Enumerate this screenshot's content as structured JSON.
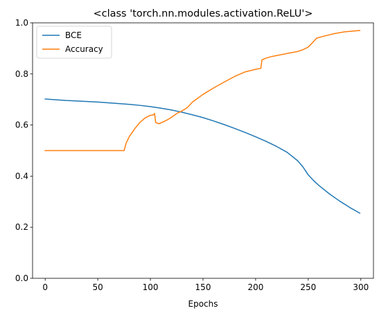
{
  "chart_data": {
    "type": "line",
    "title": "<class 'torch.nn.modules.activation.ReLU'>",
    "xlabel": "Epochs",
    "ylabel": "",
    "xlim": [
      -12,
      312
    ],
    "ylim": [
      0.0,
      1.0
    ],
    "x_ticks": [
      0,
      50,
      100,
      150,
      200,
      250,
      300
    ],
    "y_ticks": [
      0.0,
      0.2,
      0.4,
      0.6,
      0.8,
      1.0
    ],
    "x_tick_labels": [
      "0",
      "50",
      "100",
      "150",
      "200",
      "250",
      "300"
    ],
    "y_tick_labels": [
      "0.0",
      "0.2",
      "0.4",
      "0.6",
      "0.8",
      "1.0"
    ],
    "grid": false,
    "legend_position": "upper-left",
    "series": [
      {
        "name": "BCE",
        "color": "#1f77b4",
        "points": [
          [
            0,
            0.702
          ],
          [
            10,
            0.699
          ],
          [
            20,
            0.696
          ],
          [
            30,
            0.694
          ],
          [
            40,
            0.692
          ],
          [
            50,
            0.69
          ],
          [
            60,
            0.687
          ],
          [
            70,
            0.684
          ],
          [
            80,
            0.681
          ],
          [
            90,
            0.677
          ],
          [
            100,
            0.672
          ],
          [
            110,
            0.666
          ],
          [
            120,
            0.659
          ],
          [
            130,
            0.65
          ],
          [
            140,
            0.64
          ],
          [
            150,
            0.629
          ],
          [
            160,
            0.616
          ],
          [
            170,
            0.602
          ],
          [
            180,
            0.587
          ],
          [
            190,
            0.571
          ],
          [
            200,
            0.554
          ],
          [
            210,
            0.536
          ],
          [
            220,
            0.516
          ],
          [
            230,
            0.493
          ],
          [
            240,
            0.46
          ],
          [
            245,
            0.436
          ],
          [
            250,
            0.405
          ],
          [
            255,
            0.383
          ],
          [
            260,
            0.364
          ],
          [
            270,
            0.331
          ],
          [
            280,
            0.302
          ],
          [
            290,
            0.276
          ],
          [
            299,
            0.255
          ]
        ]
      },
      {
        "name": "Accuracy",
        "color": "#ff7f0e",
        "points": [
          [
            0,
            0.5
          ],
          [
            75,
            0.5
          ],
          [
            77,
            0.53
          ],
          [
            80,
            0.555
          ],
          [
            85,
            0.585
          ],
          [
            90,
            0.61
          ],
          [
            95,
            0.628
          ],
          [
            100,
            0.638
          ],
          [
            103,
            0.64
          ],
          [
            104,
            0.645
          ],
          [
            105,
            0.61
          ],
          [
            108,
            0.605
          ],
          [
            112,
            0.612
          ],
          [
            116,
            0.62
          ],
          [
            120,
            0.63
          ],
          [
            125,
            0.645
          ],
          [
            130,
            0.655
          ],
          [
            135,
            0.668
          ],
          [
            140,
            0.69
          ],
          [
            145,
            0.705
          ],
          [
            150,
            0.72
          ],
          [
            160,
            0.745
          ],
          [
            170,
            0.768
          ],
          [
            180,
            0.79
          ],
          [
            190,
            0.808
          ],
          [
            200,
            0.818
          ],
          [
            205,
            0.822
          ],
          [
            206,
            0.855
          ],
          [
            210,
            0.862
          ],
          [
            215,
            0.868
          ],
          [
            220,
            0.872
          ],
          [
            230,
            0.88
          ],
          [
            240,
            0.888
          ],
          [
            245,
            0.895
          ],
          [
            250,
            0.905
          ],
          [
            254,
            0.922
          ],
          [
            258,
            0.94
          ],
          [
            265,
            0.948
          ],
          [
            275,
            0.958
          ],
          [
            285,
            0.965
          ],
          [
            299,
            0.97
          ]
        ]
      }
    ]
  }
}
